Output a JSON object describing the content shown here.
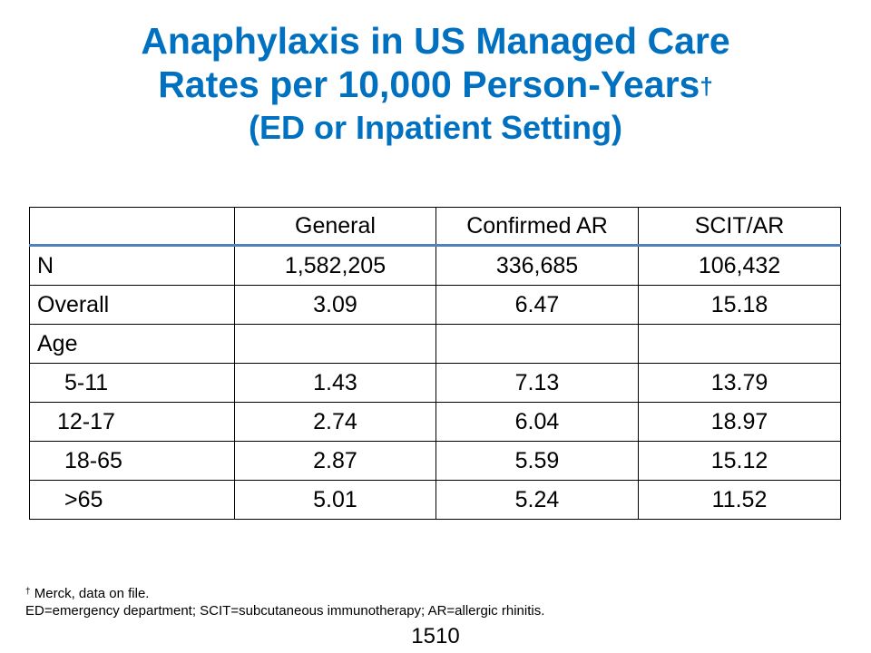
{
  "title": {
    "line1": "Anaphylaxis in US Managed Care",
    "line2": "Rates per 10,000 Person-Years",
    "line2_mark": "†",
    "line3": "(ED or Inpatient Setting)"
  },
  "table": {
    "headers": [
      "",
      "General",
      "Confirmed AR",
      "SCIT/AR"
    ],
    "rows": [
      {
        "label": "N",
        "values": [
          "1,582,205",
          "336,685",
          "106,432"
        ]
      },
      {
        "label": "Overall",
        "values": [
          "3.09",
          "6.47",
          "15.18"
        ]
      },
      {
        "label": "Age",
        "values": [
          "",
          "",
          ""
        ]
      },
      {
        "label": "5-11",
        "values": [
          "1.43",
          "7.13",
          "13.79"
        ]
      },
      {
        "label": "12-17",
        "values": [
          "2.74",
          "6.04",
          "18.97"
        ]
      },
      {
        "label": "18-65",
        "values": [
          "2.87",
          "5.59",
          "15.12"
        ]
      },
      {
        "label": ">65",
        "values": [
          "5.01",
          "5.24",
          "11.52"
        ]
      }
    ]
  },
  "footnotes": {
    "mark": "†",
    "line1": " Merck, data on file.",
    "line2": "ED=emergency department; SCIT=subcutaneous immunotherapy; AR=allergic rhinitis."
  },
  "slide_number": "1510",
  "colors": {
    "title": "#0070c0",
    "header_rule": "#4f81bd"
  }
}
